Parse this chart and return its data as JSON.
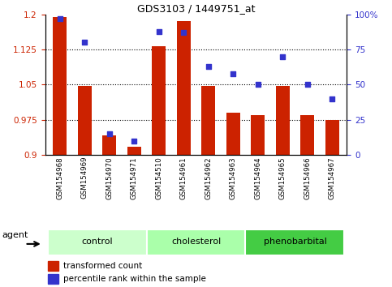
{
  "title": "GDS3103 / 1449751_at",
  "samples": [
    "GSM154968",
    "GSM154969",
    "GSM154970",
    "GSM154971",
    "GSM154510",
    "GSM154961",
    "GSM154962",
    "GSM154963",
    "GSM154964",
    "GSM154965",
    "GSM154966",
    "GSM154967"
  ],
  "red_values": [
    1.195,
    1.048,
    0.942,
    0.918,
    1.132,
    1.185,
    1.048,
    0.99,
    0.985,
    1.048,
    0.985,
    0.975
  ],
  "blue_values": [
    97,
    80,
    15,
    10,
    88,
    87,
    63,
    58,
    50,
    70,
    50,
    40
  ],
  "groups": [
    {
      "label": "control",
      "start": 0,
      "end": 3
    },
    {
      "label": "cholesterol",
      "start": 4,
      "end": 7
    },
    {
      "label": "phenobarbital",
      "start": 8,
      "end": 11
    }
  ],
  "group_colors": [
    "#ccffcc",
    "#aaffaa",
    "#44cc44"
  ],
  "ylim_left": [
    0.9,
    1.2
  ],
  "ylim_right": [
    0,
    100
  ],
  "yticks_left": [
    0.9,
    0.975,
    1.05,
    1.125,
    1.2
  ],
  "yticks_right": [
    0,
    25,
    50,
    75,
    100
  ],
  "ytick_labels_right": [
    "0",
    "25",
    "50",
    "75",
    "100%"
  ],
  "ytick_labels_left": [
    "0.9",
    "0.975",
    "1.05",
    "1.125",
    "1.2"
  ],
  "red_color": "#cc2200",
  "blue_color": "#3333cc",
  "grid_yticks": [
    0.975,
    1.05,
    1.125
  ],
  "xtick_bg_color": "#cccccc",
  "agent_label": "agent"
}
